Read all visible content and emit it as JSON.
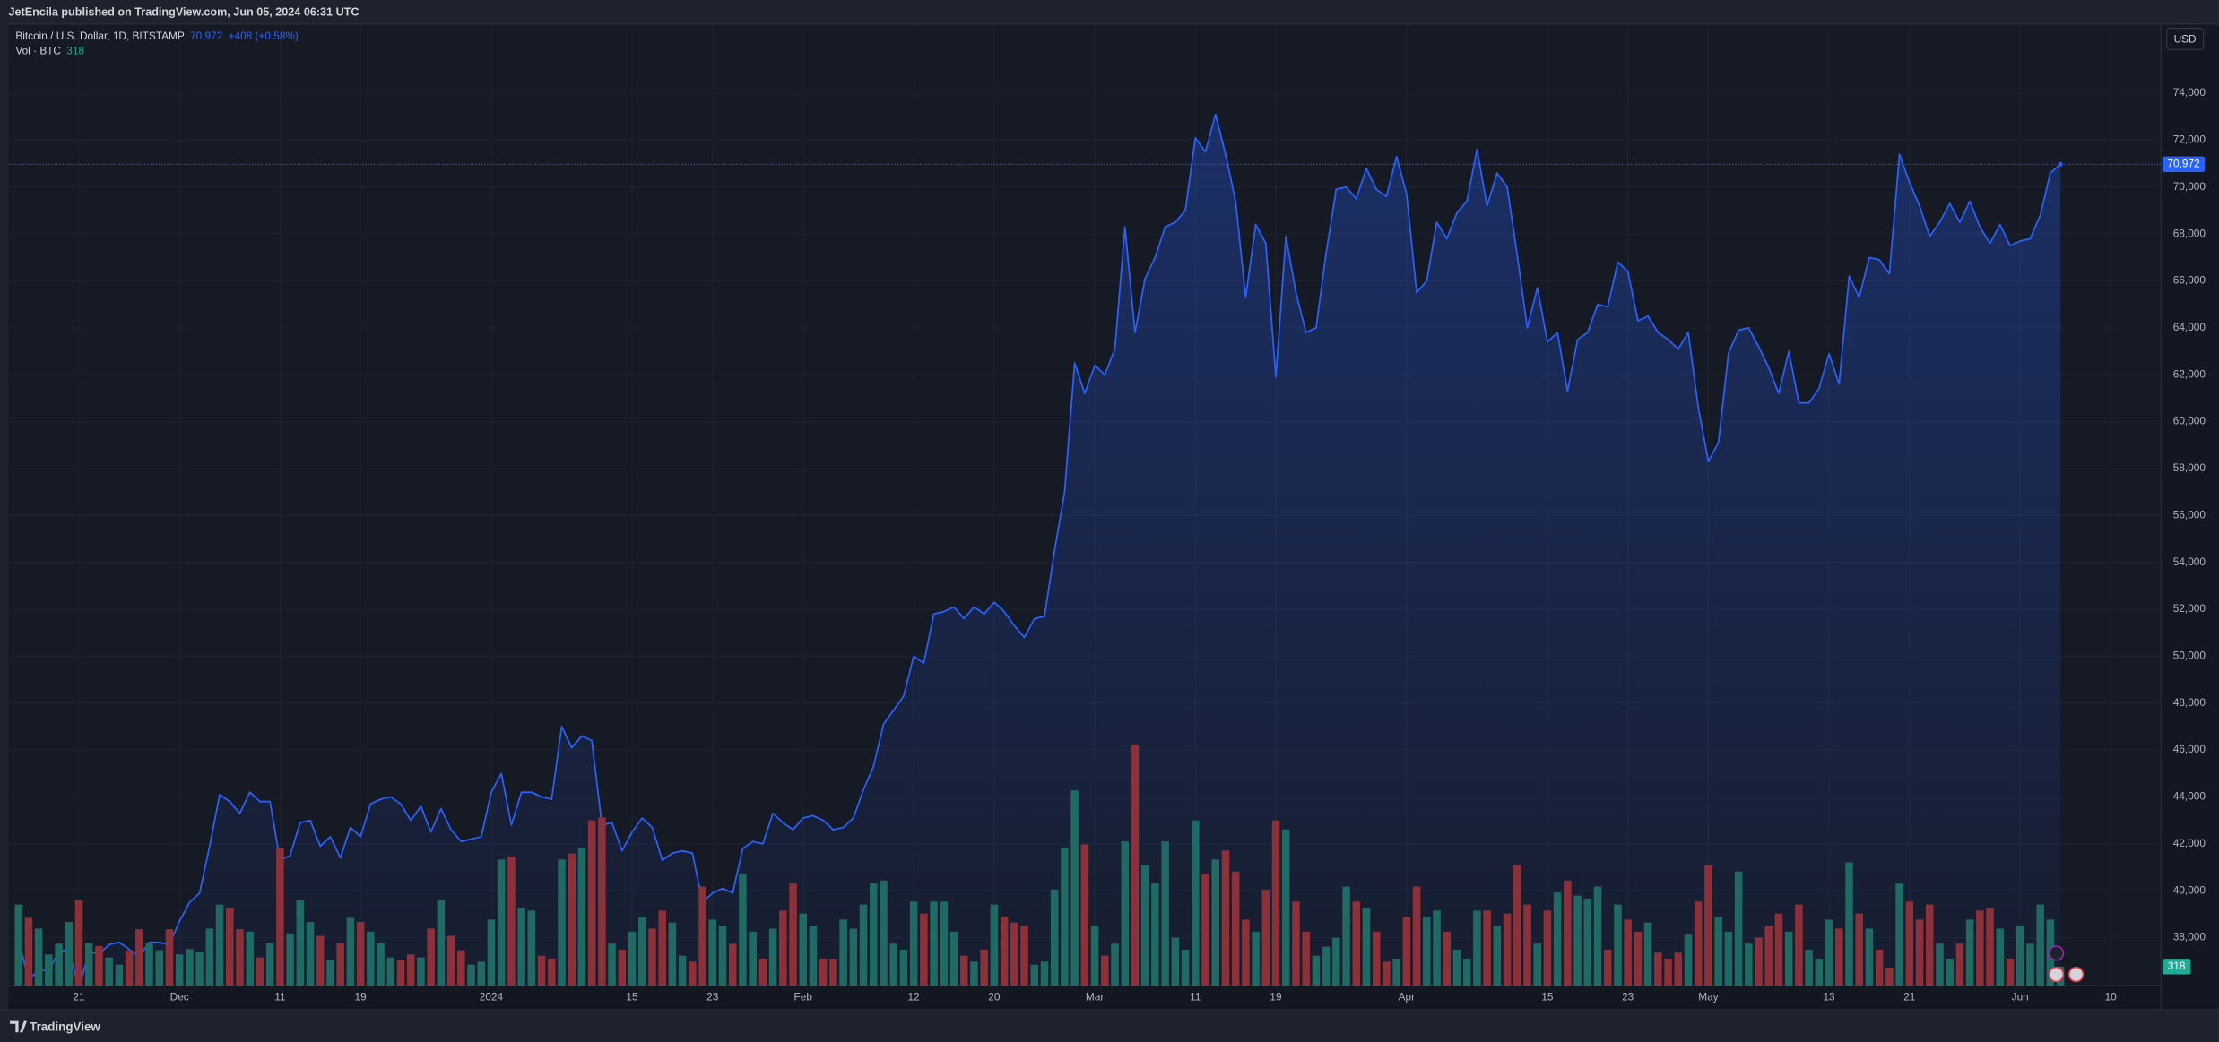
{
  "header": {
    "text": "JetEncila published on TradingView.com, Jun 05, 2024 06:31 UTC"
  },
  "footer": {
    "brand": "TradingView"
  },
  "chart_data": {
    "type": "line",
    "currency": "USD",
    "xlim": [
      "2023-11-14",
      "2024-06-15"
    ],
    "ylim": [
      35950,
      76950
    ],
    "y2lim": [
      0,
      16000
    ],
    "grid": true,
    "xticks": [
      {
        "value": "2023-11-21",
        "label": "21"
      },
      {
        "value": "2023-12-01",
        "label": "Dec"
      },
      {
        "value": "2023-12-11",
        "label": "11"
      },
      {
        "value": "2023-12-19",
        "label": "19"
      },
      {
        "value": "2024-01-01",
        "label": "2024"
      },
      {
        "value": "2024-01-15",
        "label": "15"
      },
      {
        "value": "2024-01-23",
        "label": "23"
      },
      {
        "value": "2024-02-01",
        "label": "Feb"
      },
      {
        "value": "2024-02-12",
        "label": "12"
      },
      {
        "value": "2024-02-20",
        "label": "20"
      },
      {
        "value": "2024-03-01",
        "label": "Mar"
      },
      {
        "value": "2024-03-11",
        "label": "11"
      },
      {
        "value": "2024-03-19",
        "label": "19"
      },
      {
        "value": "2024-04-01",
        "label": "Apr"
      },
      {
        "value": "2024-04-15",
        "label": "15"
      },
      {
        "value": "2024-04-23",
        "label": "23"
      },
      {
        "value": "2024-05-01",
        "label": "May"
      },
      {
        "value": "2024-05-13",
        "label": "13"
      },
      {
        "value": "2024-05-21",
        "label": "21"
      },
      {
        "value": "2024-06-01",
        "label": "Jun"
      },
      {
        "value": "2024-06-10",
        "label": "10"
      }
    ],
    "yticks": [
      {
        "value": 38000,
        "label": "38,000"
      },
      {
        "value": 40000,
        "label": "40,000"
      },
      {
        "value": 42000,
        "label": "42,000"
      },
      {
        "value": 44000,
        "label": "44,000"
      },
      {
        "value": 46000,
        "label": "46,000"
      },
      {
        "value": 48000,
        "label": "48,000"
      },
      {
        "value": 50000,
        "label": "50,000"
      },
      {
        "value": 52000,
        "label": "52,000"
      },
      {
        "value": 54000,
        "label": "54,000"
      },
      {
        "value": 56000,
        "label": "56,000"
      },
      {
        "value": 58000,
        "label": "58,000"
      },
      {
        "value": 60000,
        "label": "60,000"
      },
      {
        "value": 62000,
        "label": "62,000"
      },
      {
        "value": 64000,
        "label": "64,000"
      },
      {
        "value": 66000,
        "label": "66,000"
      },
      {
        "value": 68000,
        "label": "68,000"
      },
      {
        "value": 70000,
        "label": "70,000"
      },
      {
        "value": 72000,
        "label": "72,000"
      },
      {
        "value": 74000,
        "label": "74,000"
      }
    ],
    "x": [
      "2023-11-15",
      "2023-11-16",
      "2023-11-17",
      "2023-11-18",
      "2023-11-19",
      "2023-11-20",
      "2023-11-21",
      "2023-11-22",
      "2023-11-23",
      "2023-11-24",
      "2023-11-25",
      "2023-11-26",
      "2023-11-27",
      "2023-11-28",
      "2023-11-29",
      "2023-11-30",
      "2023-12-01",
      "2023-12-02",
      "2023-12-03",
      "2023-12-04",
      "2023-12-05",
      "2023-12-06",
      "2023-12-07",
      "2023-12-08",
      "2023-12-09",
      "2023-12-10",
      "2023-12-11",
      "2023-12-12",
      "2023-12-13",
      "2023-12-14",
      "2023-12-15",
      "2023-12-16",
      "2023-12-17",
      "2023-12-18",
      "2023-12-19",
      "2023-12-20",
      "2023-12-21",
      "2023-12-22",
      "2023-12-23",
      "2023-12-24",
      "2023-12-25",
      "2023-12-26",
      "2023-12-27",
      "2023-12-28",
      "2023-12-29",
      "2023-12-30",
      "2023-12-31",
      "2024-01-01",
      "2024-01-02",
      "2024-01-03",
      "2024-01-04",
      "2024-01-05",
      "2024-01-06",
      "2024-01-07",
      "2024-01-08",
      "2024-01-09",
      "2024-01-10",
      "2024-01-11",
      "2024-01-12",
      "2024-01-13",
      "2024-01-14",
      "2024-01-15",
      "2024-01-16",
      "2024-01-17",
      "2024-01-18",
      "2024-01-19",
      "2024-01-20",
      "2024-01-21",
      "2024-01-22",
      "2024-01-23",
      "2024-01-24",
      "2024-01-25",
      "2024-01-26",
      "2024-01-27",
      "2024-01-28",
      "2024-01-29",
      "2024-01-30",
      "2024-01-31",
      "2024-02-01",
      "2024-02-02",
      "2024-02-03",
      "2024-02-04",
      "2024-02-05",
      "2024-02-06",
      "2024-02-07",
      "2024-02-08",
      "2024-02-09",
      "2024-02-10",
      "2024-02-11",
      "2024-02-12",
      "2024-02-13",
      "2024-02-14",
      "2024-02-15",
      "2024-02-16",
      "2024-02-17",
      "2024-02-18",
      "2024-02-19",
      "2024-02-20",
      "2024-02-21",
      "2024-02-22",
      "2024-02-23",
      "2024-02-24",
      "2024-02-25",
      "2024-02-26",
      "2024-02-27",
      "2024-02-28",
      "2024-02-29",
      "2024-03-01",
      "2024-03-02",
      "2024-03-03",
      "2024-03-04",
      "2024-03-05",
      "2024-03-06",
      "2024-03-07",
      "2024-03-08",
      "2024-03-09",
      "2024-03-10",
      "2024-03-11",
      "2024-03-12",
      "2024-03-13",
      "2024-03-14",
      "2024-03-15",
      "2024-03-16",
      "2024-03-17",
      "2024-03-18",
      "2024-03-19",
      "2024-03-20",
      "2024-03-21",
      "2024-03-22",
      "2024-03-23",
      "2024-03-24",
      "2024-03-25",
      "2024-03-26",
      "2024-03-27",
      "2024-03-28",
      "2024-03-29",
      "2024-03-30",
      "2024-03-31",
      "2024-04-01",
      "2024-04-02",
      "2024-04-03",
      "2024-04-04",
      "2024-04-05",
      "2024-04-06",
      "2024-04-07",
      "2024-04-08",
      "2024-04-09",
      "2024-04-10",
      "2024-04-11",
      "2024-04-12",
      "2024-04-13",
      "2024-04-14",
      "2024-04-15",
      "2024-04-16",
      "2024-04-17",
      "2024-04-18",
      "2024-04-19",
      "2024-04-20",
      "2024-04-21",
      "2024-04-22",
      "2024-04-23",
      "2024-04-24",
      "2024-04-25",
      "2024-04-26",
      "2024-04-27",
      "2024-04-28",
      "2024-04-29",
      "2024-04-30",
      "2024-05-01",
      "2024-05-02",
      "2024-05-03",
      "2024-05-04",
      "2024-05-05",
      "2024-05-06",
      "2024-05-07",
      "2024-05-08",
      "2024-05-09",
      "2024-05-10",
      "2024-05-11",
      "2024-05-12",
      "2024-05-13",
      "2024-05-14",
      "2024-05-15",
      "2024-05-16",
      "2024-05-17",
      "2024-05-18",
      "2024-05-19",
      "2024-05-20",
      "2024-05-21",
      "2024-05-22",
      "2024-05-23",
      "2024-05-24",
      "2024-05-25",
      "2024-05-26",
      "2024-05-27",
      "2024-05-28",
      "2024-05-29",
      "2024-05-30",
      "2024-05-31",
      "2024-06-01",
      "2024-06-02",
      "2024-06-03",
      "2024-06-04",
      "2024-06-05"
    ],
    "series": [
      {
        "name": "Bitcoin / U.S. Dollar, 1D, BITSTAMP",
        "color": "#2962ff",
        "last_label": "70,972",
        "change_label": "+408 (+0.58%)",
        "values": [
          37900,
          36200,
          36600,
          36600,
          37400,
          37500,
          35800,
          37400,
          37300,
          37700,
          37800,
          37500,
          37200,
          37800,
          37800,
          37700,
          38700,
          39500,
          39900,
          41900,
          44100,
          43800,
          43300,
          44200,
          43800,
          43800,
          41300,
          41500,
          42900,
          43000,
          41900,
          42300,
          41400,
          42700,
          42300,
          43700,
          43900,
          44000,
          43700,
          43000,
          43600,
          42500,
          43500,
          42600,
          42100,
          42200,
          42300,
          44200,
          45000,
          42800,
          44200,
          44200,
          44000,
          43900,
          47000,
          46100,
          46600,
          46400,
          42800,
          42900,
          41700,
          42500,
          43100,
          42700,
          41300,
          41600,
          41700,
          41600,
          39500,
          39900,
          40100,
          39900,
          41800,
          42100,
          42000,
          43300,
          42900,
          42600,
          43100,
          43200,
          43000,
          42600,
          42700,
          43100,
          44300,
          45300,
          47100,
          47700,
          48300,
          50000,
          49700,
          51800,
          51900,
          52100,
          51600,
          52100,
          51800,
          52300,
          51900,
          51300,
          50800,
          51600,
          51700,
          54500,
          57000,
          62500,
          61200,
          62400,
          62000,
          63100,
          68300,
          63800,
          66100,
          67000,
          68300,
          68500,
          69000,
          72100,
          71500,
          73100,
          71400,
          69400,
          65300,
          68400,
          67600,
          61900,
          67900,
          65500,
          63800,
          64000,
          67200,
          69900,
          70000,
          69500,
          70800,
          69900,
          69600,
          71300,
          69700,
          65500,
          66000,
          68500,
          67800,
          68900,
          69400,
          71600,
          69200,
          70600,
          70000,
          67100,
          64000,
          65700,
          63400,
          63800,
          61300,
          63500,
          63800,
          65000,
          64900,
          66800,
          66400,
          64300,
          64500,
          63800,
          63500,
          63100,
          63800,
          60600,
          58300,
          59100,
          62900,
          63900,
          64000,
          63200,
          62300,
          61200,
          63000,
          60800,
          60800,
          61400,
          62900,
          61600,
          66200,
          65300,
          67000,
          66900,
          66300,
          71400,
          70200,
          69200,
          67900,
          68500,
          69300,
          68500,
          69400,
          68300,
          67600,
          68400,
          67500,
          67700,
          67800,
          68800,
          70600,
          70972
        ]
      },
      {
        "name": "Vol · BTC",
        "type": "bar",
        "axis": "y2",
        "up_color": "#1f6b64",
        "down_color": "#8e3038",
        "label_color": "#22ab94",
        "last_label": "318",
        "values": [
          1350,
          1130,
          950,
          520,
          700,
          1060,
          1420,
          710,
          660,
          470,
          350,
          590,
          940,
          710,
          590,
          940,
          520,
          610,
          570,
          950,
          1350,
          1300,
          940,
          900,
          470,
          710,
          2290,
          870,
          1420,
          1060,
          830,
          420,
          710,
          1130,
          1060,
          900,
          710,
          470,
          420,
          520,
          470,
          950,
          1420,
          830,
          590,
          350,
          400,
          1100,
          2100,
          2150,
          1300,
          1250,
          500,
          450,
          2100,
          2200,
          2300,
          2750,
          2800,
          700,
          600,
          900,
          1150,
          950,
          1250,
          1050,
          500,
          400,
          1650,
          1100,
          1000,
          700,
          1850,
          900,
          450,
          950,
          1250,
          1700,
          1200,
          1000,
          450,
          450,
          1100,
          950,
          1350,
          1700,
          1750,
          700,
          600,
          1400,
          1200,
          1400,
          1400,
          900,
          500,
          400,
          600,
          1350,
          1150,
          1050,
          1000,
          350,
          400,
          1600,
          2300,
          3250,
          2350,
          1000,
          500,
          700,
          2400,
          4000,
          2000,
          1700,
          2400,
          800,
          600,
          2750,
          1850,
          2100,
          2250,
          1900,
          1100,
          900,
          1600,
          2750,
          2600,
          1400,
          900,
          500,
          650,
          800,
          1650,
          1400,
          1300,
          900,
          400,
          450,
          1150,
          1650,
          1150,
          1250,
          900,
          600,
          450,
          1250,
          1250,
          1000,
          1200,
          2000,
          1350,
          700,
          1250,
          1550,
          1750,
          1500,
          1450,
          1650,
          600,
          1350,
          1100,
          900,
          1050,
          550,
          450,
          550,
          850,
          1400,
          2000,
          1150,
          900,
          1900,
          700,
          800,
          1000,
          1200,
          900,
          1350,
          600,
          450,
          1100,
          950,
          2050,
          1200,
          950,
          600,
          300,
          1700,
          1400,
          1100,
          1350,
          700,
          450,
          700,
          1100,
          1250,
          1300,
          950,
          450,
          1000,
          700,
          1350,
          1100,
          318
        ]
      }
    ]
  }
}
